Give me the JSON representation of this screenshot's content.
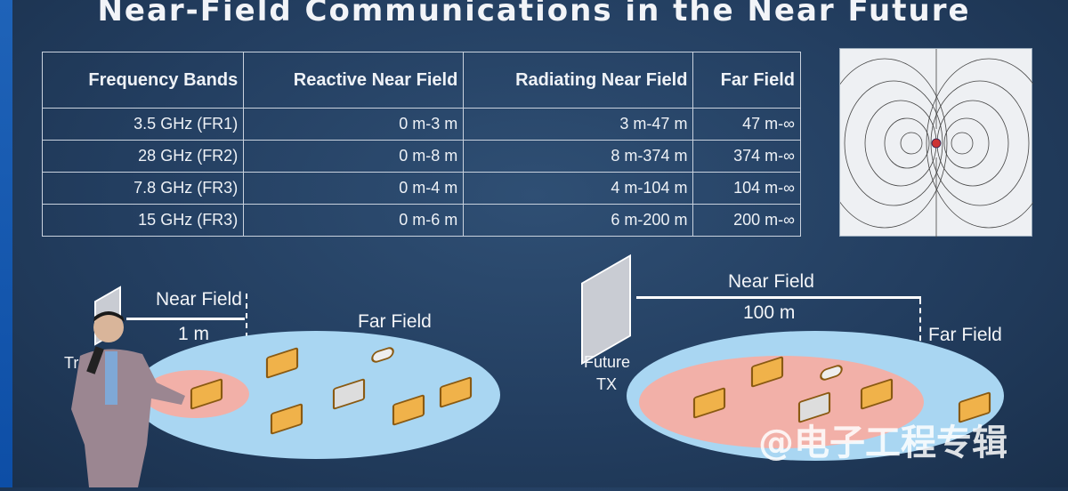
{
  "slide": {
    "title": "Near-Field Communications in the Near Future"
  },
  "table": {
    "headers": [
      "Frequency Bands",
      "Reactive Near Field",
      "Radiating Near Field",
      "Far Field"
    ],
    "rows": [
      [
        "3.5 GHz (FR1)",
        "0 m-3 m",
        "3 m-47 m",
        "47 m-∞"
      ],
      [
        "28 GHz (FR2)",
        "0 m-8 m",
        "8 m-374 m",
        "374 m-∞"
      ],
      [
        "7.8 GHz (FR3)",
        "0 m-4 m",
        "4 m-104 m",
        "104 m-∞"
      ],
      [
        "15 GHz (FR3)",
        "0 m-6 m",
        "6 m-200 m",
        "200 m-∞"
      ]
    ]
  },
  "left_diagram": {
    "near_field": "Near Field",
    "distance": "1 m",
    "far_field": "Far Field",
    "tx_label_partial": "Tr"
  },
  "right_diagram": {
    "near_field": "Near Field",
    "distance": "100 m",
    "far_field": "Far Field",
    "tx_label_line1": "Future",
    "tx_label_line2": "TX"
  },
  "watermark": "@电子工程专辑",
  "colors": {
    "background": "#233e60",
    "far_ellipse": "#a9d6f2",
    "near_ellipse": "#f2b0a8",
    "device": "#f0b24a"
  }
}
